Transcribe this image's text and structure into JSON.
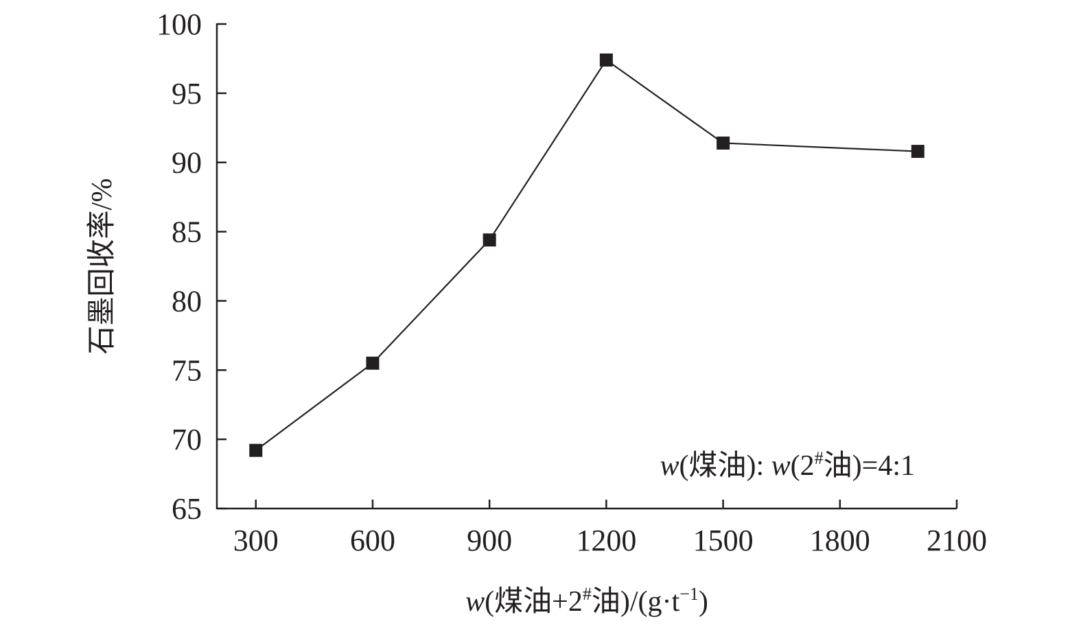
{
  "chart_data": {
    "type": "line",
    "title": "",
    "x": [
      300,
      600,
      900,
      1200,
      1500,
      2000
    ],
    "series": [
      {
        "values": [
          69.2,
          75.5,
          84.4,
          97.4,
          91.4,
          90.8
        ]
      }
    ],
    "xlim": [
      200,
      2100
    ],
    "ylim": [
      65,
      100
    ],
    "x_ticks": [
      "300",
      "600",
      "900",
      "1200",
      "1500",
      "1800",
      "2100"
    ],
    "y_ticks": [
      "65",
      "70",
      "75",
      "80",
      "85",
      "90",
      "95",
      "100"
    ],
    "grid": false,
    "legend": "none",
    "marker": "square",
    "colors": {
      "line": "#231f20",
      "marker": "#231f20",
      "axis": "#231f20"
    },
    "ylabel": "石墨回收率/%",
    "xlabel": {
      "var": "w",
      "open": "(煤油+2",
      "sup": "#",
      "mid": "油)/(g·t",
      "sup2": "−1",
      "close": ")"
    },
    "annotation": {
      "var1": "w",
      "text1": "(煤油): ",
      "var2": "w",
      "text2": "(2",
      "sup": "#",
      "text3": "油)=4:1"
    }
  }
}
